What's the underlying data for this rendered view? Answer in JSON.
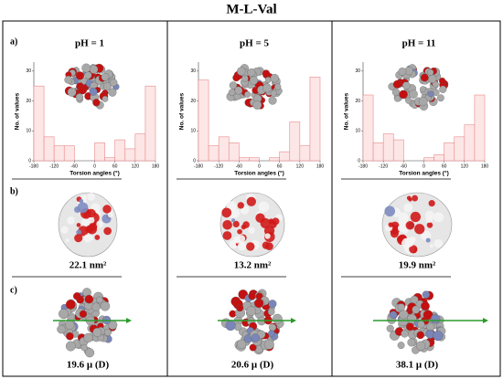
{
  "title": "M-L-Val",
  "row_labels": [
    "a)",
    "b)",
    "c)"
  ],
  "surface_areas": [
    "22.1 nm²",
    "13.2 nm²",
    "19.9 nm²"
  ],
  "dipoles": [
    "19.6 μ (D)",
    "20.6 μ (D)",
    "38.1 μ (D)"
  ],
  "chart_data": [
    {
      "type": "histogram",
      "title": "pH = 1",
      "x_label": "Torsion angles (°)",
      "y_label": "No. of values",
      "bins": [
        -180,
        -150,
        -120,
        -90,
        -60,
        -30,
        0,
        30,
        60,
        90,
        120,
        150,
        180
      ],
      "values": [
        25,
        8,
        5,
        5,
        0,
        0,
        6,
        1,
        7,
        4,
        9,
        25
      ],
      "color": "#fde6e6",
      "edge_color": "#e88a8a",
      "xlim": [
        -180,
        180
      ],
      "xticks": [
        -180,
        -120,
        -60,
        0,
        60,
        120,
        180
      ],
      "ylim": [
        0,
        33
      ],
      "yticks": [
        0,
        10,
        20,
        30
      ]
    },
    {
      "type": "histogram",
      "title": "pH = 5",
      "x_label": "Torsion angles (°)",
      "y_label": "No. of values",
      "bins": [
        -180,
        -150,
        -120,
        -90,
        -60,
        -30,
        0,
        30,
        60,
        90,
        120,
        150,
        180
      ],
      "values": [
        27,
        5,
        8,
        6,
        1,
        1,
        0,
        1,
        3,
        13,
        5,
        28
      ],
      "color": "#fde6e6",
      "edge_color": "#e88a8a",
      "xlim": [
        -180,
        180
      ],
      "xticks": [
        -180,
        -120,
        -60,
        0,
        60,
        120,
        180
      ],
      "ylim": [
        0,
        33
      ],
      "yticks": [
        0,
        10,
        20,
        30
      ]
    },
    {
      "type": "histogram",
      "title": "pH = 11",
      "x_label": "Torsion angles (°)",
      "y_label": "No. of values",
      "bins": [
        -180,
        -150,
        -120,
        -90,
        -60,
        -30,
        0,
        30,
        60,
        90,
        120,
        150,
        180
      ],
      "values": [
        22,
        6,
        9,
        7,
        0,
        0,
        1,
        2,
        6,
        8,
        12,
        22
      ],
      "color": "#fde6e6",
      "edge_color": "#e88a8a",
      "xlim": [
        -180,
        180
      ],
      "xticks": [
        -180,
        -120,
        -60,
        0,
        60,
        120,
        180
      ],
      "ylim": [
        0,
        33
      ],
      "yticks": [
        0,
        10,
        20,
        30
      ]
    }
  ]
}
